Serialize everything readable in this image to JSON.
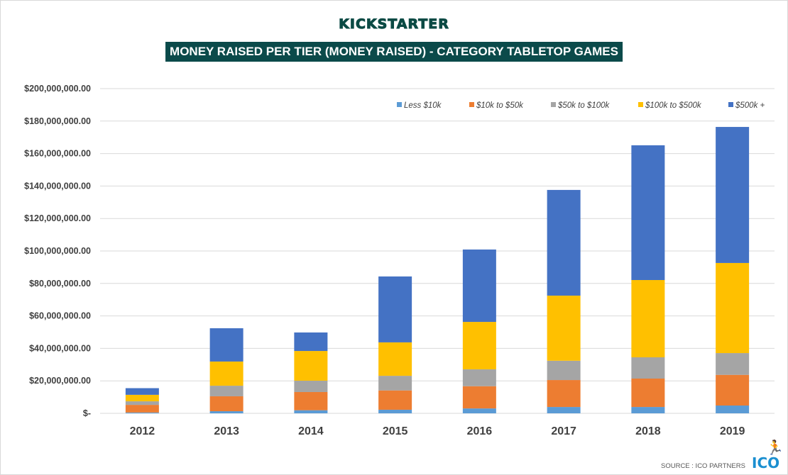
{
  "brand": "KICKSTARTER",
  "source": "SOURCE : ICO PARTNERS",
  "logo": "ICO",
  "chart_data": {
    "type": "bar",
    "stacked": true,
    "title": "MONEY RAISED PER TIER (MONEY RAISED) - CATEGORY TABLETOP GAMES",
    "xlabel": "",
    "ylabel": "",
    "categories": [
      "2012",
      "2013",
      "2014",
      "2015",
      "2016",
      "2017",
      "2018",
      "2019"
    ],
    "ylim": [
      0,
      200000000
    ],
    "yticks": [
      0,
      20000000,
      40000000,
      60000000,
      80000000,
      100000000,
      120000000,
      140000000,
      160000000,
      180000000,
      200000000
    ],
    "ytick_labels": [
      "$-",
      "$20,000,000.00",
      "$40,000,000.00",
      "$60,000,000.00",
      "$80,000,000.00",
      "$100,000,000.00",
      "$120,000,000.00",
      "$140,000,000.00",
      "$160,000,000.00",
      "$180,000,000.00",
      "$200,000,000.00"
    ],
    "grid": true,
    "legend_position": "top-right",
    "series": [
      {
        "name": "Less $10k",
        "color": "#5b9bd5",
        "values": [
          500000,
          1300000,
          1900000,
          2200000,
          3000000,
          3900000,
          3900000,
          4800000
        ]
      },
      {
        "name": "$10k to $50k",
        "color": "#ed7d31",
        "values": [
          4700000,
          9200000,
          11200000,
          11900000,
          13700000,
          16600000,
          17500000,
          18900000
        ]
      },
      {
        "name": "$50k to $100k",
        "color": "#a5a5a5",
        "values": [
          2200000,
          6500000,
          7000000,
          9000000,
          10400000,
          11900000,
          13100000,
          13400000
        ]
      },
      {
        "name": "$100k to $500k",
        "color": "#ffc000",
        "values": [
          4000000,
          14900000,
          18300000,
          20600000,
          29200000,
          40100000,
          47600000,
          55500000
        ]
      },
      {
        "name": "$500k +",
        "color": "#4472c4",
        "values": [
          4100000,
          20500000,
          11400000,
          40600000,
          44600000,
          65100000,
          83000000,
          83800000
        ]
      }
    ]
  }
}
